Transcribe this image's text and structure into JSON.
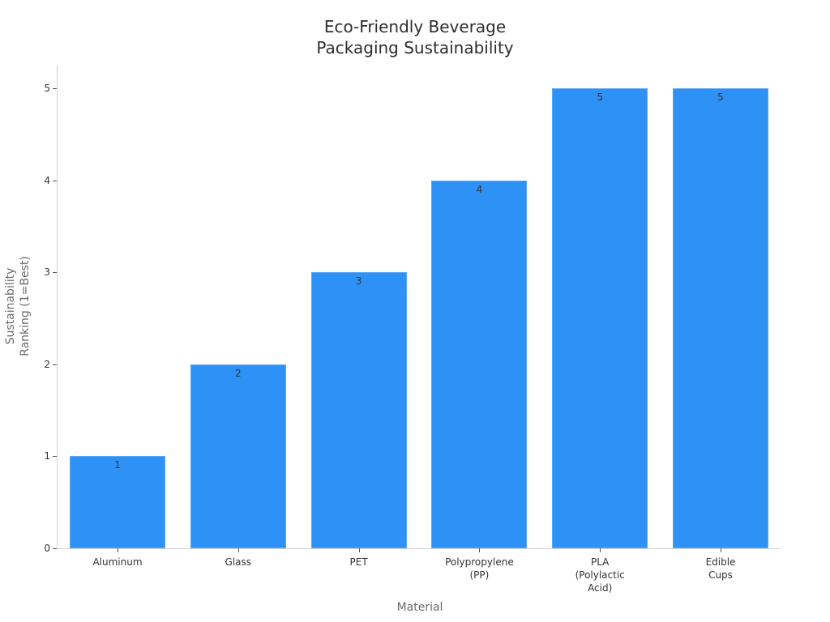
{
  "chart_data": {
    "type": "bar",
    "title": "Eco-Friendly Beverage\nPackaging Sustainability",
    "title_lines": [
      "Eco-Friendly Beverage",
      "Packaging Sustainability"
    ],
    "xlabel": "Material",
    "ylabel": "Sustainability\nRanking (1=Best)",
    "categories": [
      "Aluminum",
      "Glass",
      "PET",
      "Polypropylene\n(PP)",
      "PLA\n(Polylactic\nAcid)",
      "Edible\nCups"
    ],
    "values": [
      1,
      2,
      3,
      4,
      5,
      5
    ],
    "data_labels": [
      "1",
      "2",
      "3",
      "4",
      "5",
      "5"
    ],
    "yticks": [
      "0",
      "1",
      "2",
      "3",
      "4",
      "5"
    ],
    "ylim": [
      0,
      5.25
    ],
    "grid": false,
    "legend": null,
    "bar_color": "#2e91f5"
  }
}
